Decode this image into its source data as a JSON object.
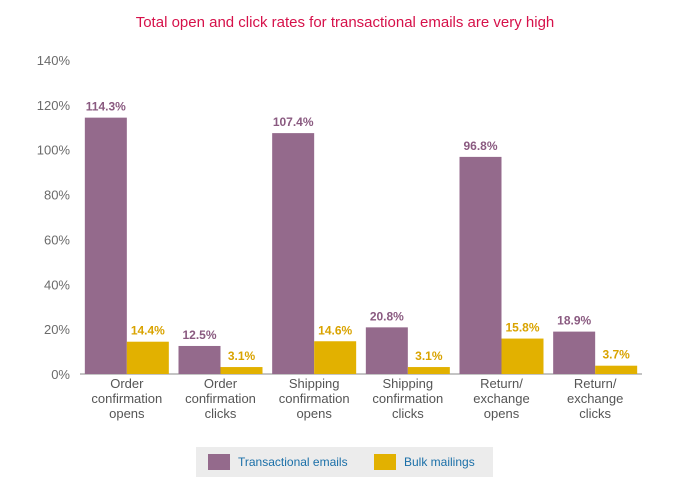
{
  "chart_data": {
    "type": "bar",
    "title": "Total open and click rates for transactional emails are very high",
    "title_color": "#d6114a",
    "categories": [
      [
        "Order",
        "confirmation",
        "opens"
      ],
      [
        "Order",
        "confirmation",
        "clicks"
      ],
      [
        "Shipping",
        "confirmation",
        "opens"
      ],
      [
        "Shipping",
        "confirmation",
        "clicks"
      ],
      [
        "Return/",
        "exchange",
        "opens"
      ],
      [
        "Return/",
        "exchange",
        "clicks"
      ]
    ],
    "series": [
      {
        "name": "Transactional emails",
        "color": "#946a8c",
        "label_color": "#8a5a80",
        "values": [
          114.3,
          12.5,
          107.4,
          20.8,
          96.8,
          18.9
        ],
        "labels": [
          "114.3%",
          "12.5%",
          "107.4%",
          "20.8%",
          "96.8%",
          "18.9%"
        ]
      },
      {
        "name": "Bulk mailings",
        "color": "#e2b100",
        "label_color": "#d9a300",
        "values": [
          14.4,
          3.1,
          14.6,
          3.1,
          15.8,
          3.7
        ],
        "labels": [
          "14.4%",
          "3.1%",
          "14.6%",
          "3.1%",
          "15.8%",
          "3.7%"
        ]
      }
    ],
    "yticks": [
      {
        "value": 0,
        "label": "0%"
      },
      {
        "value": 20,
        "label": "20%"
      },
      {
        "value": 40,
        "label": "40%"
      },
      {
        "value": 60,
        "label": "60%"
      },
      {
        "value": 80,
        "label": "80%"
      },
      {
        "value": 100,
        "label": "100%"
      },
      {
        "value": 120,
        "label": "120%"
      },
      {
        "value": 140,
        "label": "140%"
      }
    ],
    "ylim": [
      0,
      140
    ],
    "grid": false,
    "legend_position": "bottom-center",
    "legend_text_color": "#1a6fa8"
  }
}
